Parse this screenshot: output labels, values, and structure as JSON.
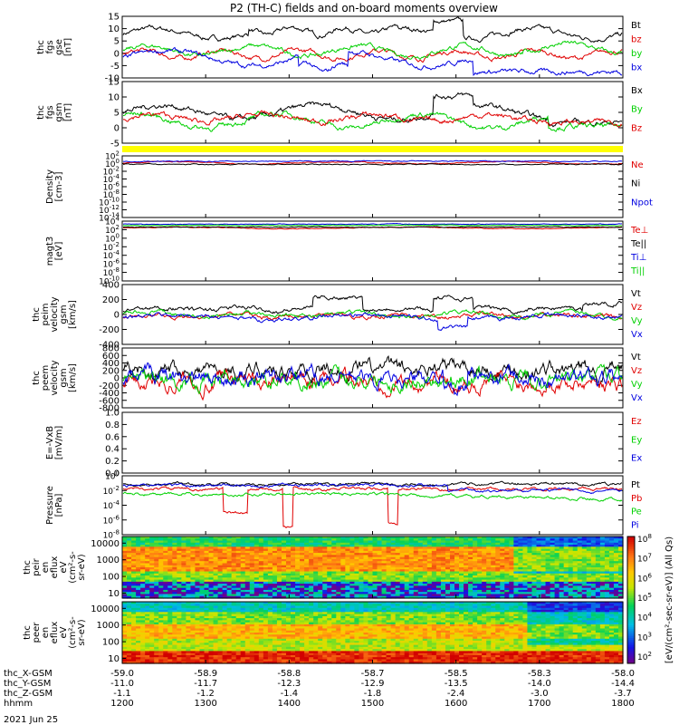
{
  "title": "P2 (TH-C) fields and on-board moments overview",
  "date_label": "2021 Jun 25",
  "cbar_label": "[eV/(cm^2-sec-sr-eV)] (All Qs)",
  "cbar_ticks": [
    "10^8",
    "10^7",
    "10^6",
    "10^5",
    "10^4",
    "10^3",
    "10^2"
  ],
  "chart_data": [
    {
      "type": "line",
      "ylabel": [
        "thc",
        "fgs",
        "gse",
        "[nT]"
      ],
      "ylim": [
        -10,
        15
      ],
      "yticks": [
        "15",
        "10",
        "5",
        "0",
        "-5",
        "-10"
      ],
      "legend": [
        {
          "name": "Bt",
          "color": "#000000"
        },
        {
          "name": "bz",
          "color": "#e00000"
        },
        {
          "name": "by",
          "color": "#00d000"
        },
        {
          "name": "bx",
          "color": "#0000e0"
        }
      ]
    },
    {
      "type": "line",
      "ylabel": [
        "thc",
        "fgs",
        "gsm",
        "[nT]"
      ],
      "ylim": [
        -7,
        15
      ],
      "yticks": [
        "15",
        "10",
        "5",
        "0",
        "-5"
      ],
      "legend": [
        {
          "name": "Bx",
          "color": "#000000"
        },
        {
          "name": "By",
          "color": "#00d000"
        },
        {
          "name": "Bz",
          "color": "#e00000"
        }
      ]
    },
    {
      "type": "line",
      "ylabel": [
        "Density",
        "[cm-3]"
      ],
      "ylim": [
        -14,
        2
      ],
      "log": true,
      "yticks": [
        "10^2",
        "10^0",
        "10^-2",
        "10^-4",
        "10^-6",
        "10^-8",
        "10^-10",
        "10^-12",
        "10^-14"
      ],
      "legend": [
        {
          "name": "Ne",
          "color": "#e00000"
        },
        {
          "name": "Ni",
          "color": "#000000"
        },
        {
          "name": "Npot",
          "color": "#0000e0"
        }
      ]
    },
    {
      "type": "line",
      "ylabel": [
        "magt3",
        "[eV]"
      ],
      "ylim": [
        -10,
        4
      ],
      "log": true,
      "yticks": [
        "10^4",
        "10^2",
        "10^0",
        "10^-2",
        "10^-4",
        "10^-6",
        "10^-8",
        "10^-10"
      ],
      "legend": [
        {
          "name": "Te⊥",
          "color": "#e00000"
        },
        {
          "name": "Te||",
          "color": "#000000"
        },
        {
          "name": "Ti⊥",
          "color": "#0000e0"
        },
        {
          "name": "Ti||",
          "color": "#00d000"
        }
      ]
    },
    {
      "type": "line",
      "ylabel": [
        "thc",
        "peim",
        "velocity",
        "gsm",
        "[km/s]"
      ],
      "ylim": [
        -400,
        400
      ],
      "yticks": [
        "400",
        "200",
        "0",
        "-200",
        "-400"
      ],
      "legend": [
        {
          "name": "Vt",
          "color": "#000000"
        },
        {
          "name": "Vz",
          "color": "#e00000"
        },
        {
          "name": "Vy",
          "color": "#00d000"
        },
        {
          "name": "Vx",
          "color": "#0000e0"
        }
      ]
    },
    {
      "type": "line",
      "ylabel": [
        "thc",
        "peem",
        "velocity",
        "gsm",
        "[km/s]"
      ],
      "ylim": [
        -800,
        800
      ],
      "yticks": [
        "800",
        "600",
        "400",
        "200",
        "0",
        "-200",
        "-400",
        "-600",
        "-800"
      ],
      "legend": [
        {
          "name": "Vt",
          "color": "#000000"
        },
        {
          "name": "Vz",
          "color": "#e00000"
        },
        {
          "name": "Vy",
          "color": "#00d000"
        },
        {
          "name": "Vx",
          "color": "#0000e0"
        }
      ]
    },
    {
      "type": "line",
      "ylabel": [
        "E=-VxB",
        "[mV/m]"
      ],
      "ylim": [
        0,
        1
      ],
      "yticks": [
        "1.0",
        "0.8",
        "0.6",
        "0.4",
        "0.2",
        "0.0"
      ],
      "legend": [
        {
          "name": "Ez",
          "color": "#e00000"
        },
        {
          "name": "Ey",
          "color": "#00d000"
        },
        {
          "name": "Ex",
          "color": "#0000e0"
        }
      ]
    },
    {
      "type": "line",
      "ylabel": [
        "Pressure",
        "[nPa]"
      ],
      "ylim": [
        -8,
        0
      ],
      "log": true,
      "yticks": [
        "10^0",
        "10^-2",
        "10^-4",
        "10^-6",
        "10^-8"
      ],
      "legend": [
        {
          "name": "Pt",
          "color": "#000000"
        },
        {
          "name": "Pb",
          "color": "#e00000"
        },
        {
          "name": "Pe",
          "color": "#00d000"
        },
        {
          "name": "Pi",
          "color": "#0000e0"
        }
      ]
    },
    {
      "type": "heatmap",
      "ylabel": [
        "thc",
        "peir",
        "en",
        "eflux",
        "eV",
        "(cm^2-s-",
        "sr-eV)"
      ],
      "yticks": [
        "10000",
        "1000",
        "100",
        "10"
      ]
    },
    {
      "type": "heatmap",
      "ylabel": [
        "thc",
        "peer",
        "en",
        "eflux",
        "eV",
        "(cm^2-s-",
        "sr-eV)"
      ],
      "yticks": [
        "10000",
        "1000",
        "100",
        "10"
      ]
    }
  ],
  "xaxis": {
    "xlim": [
      1200,
      1800
    ],
    "rows": [
      {
        "label": "thc_X-GSM",
        "values": [
          "-59.0",
          "-58.9",
          "-58.8",
          "-58.7",
          "-58.5",
          "-58.3",
          "-58.0"
        ]
      },
      {
        "label": "thc_Y-GSM",
        "values": [
          "-11.0",
          "-11.7",
          "-12.3",
          "-12.9",
          "-13.5",
          "-14.0",
          "-14.4"
        ]
      },
      {
        "label": "thc_Z-GSM",
        "values": [
          "-1.1",
          "-1.2",
          "-1.4",
          "-1.8",
          "-2.4",
          "-3.0",
          "-3.7"
        ]
      },
      {
        "label": "hhmm",
        "values": [
          "1200",
          "1300",
          "1400",
          "1500",
          "1600",
          "1700",
          "1800"
        ]
      }
    ]
  }
}
